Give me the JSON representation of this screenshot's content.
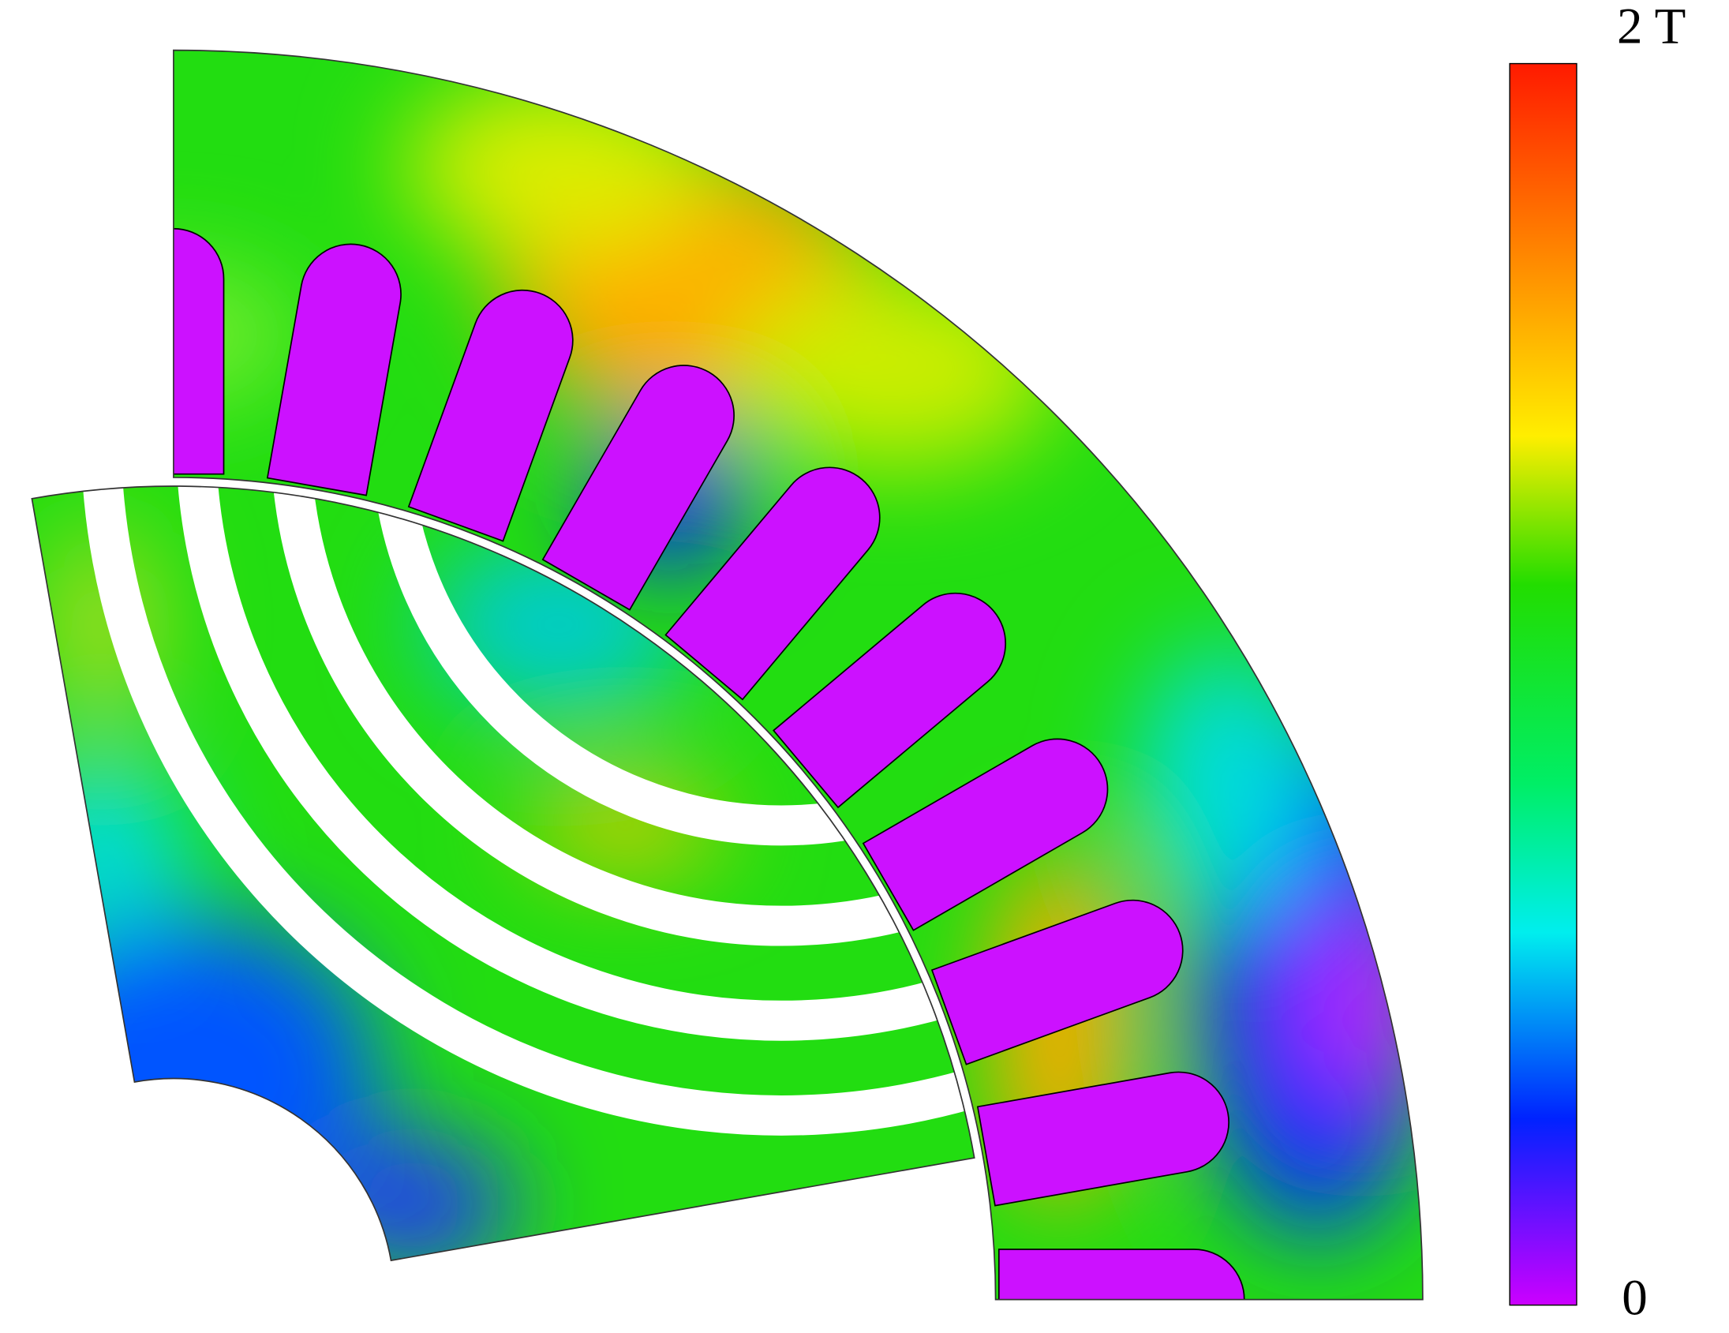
{
  "colorbar": {
    "max_label": "2 T",
    "min_label": "0"
  }
}
